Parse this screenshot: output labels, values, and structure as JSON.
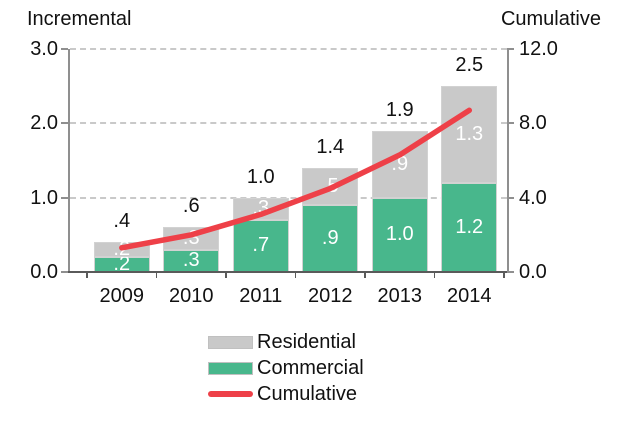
{
  "chart_data": {
    "type": "bar",
    "subtype": "stacked-column-with-cumulative-line",
    "categories": [
      "2009",
      "2010",
      "2011",
      "2012",
      "2013",
      "2014"
    ],
    "series": [
      {
        "name": "Commercial",
        "type": "bar",
        "axis": "left",
        "color": "#48b78c",
        "values": [
          0.2,
          0.3,
          0.7,
          0.9,
          1.0,
          1.2
        ],
        "data_labels": [
          ".2",
          ".3",
          ".7",
          ".9",
          "1.0",
          "1.2"
        ],
        "label_color": "#ffffff"
      },
      {
        "name": "Residential",
        "type": "bar",
        "axis": "left",
        "color": "#c9c9c9",
        "values": [
          0.2,
          0.3,
          0.3,
          0.5,
          0.9,
          1.3
        ],
        "data_labels": [
          ".2",
          ".3",
          ".3",
          ".5",
          ".9",
          "1.3"
        ],
        "label_color": "#ffffff"
      },
      {
        "name": "Cumulative",
        "type": "line",
        "axis": "right",
        "color": "#ee4048",
        "values": [
          1.3,
          2.0,
          3.1,
          4.5,
          6.3,
          8.7
        ]
      }
    ],
    "stack_total_values": [
      0.4,
      0.6,
      1.0,
      1.4,
      1.9,
      2.5
    ],
    "stack_total_labels": [
      ".4",
      ".6",
      "1.0",
      "1.4",
      "1.9",
      "2.5"
    ],
    "left_axis": {
      "title": "Incremental",
      "tick_labels": [
        "3.0",
        "2.0",
        "1.0",
        "0.0"
      ],
      "tick_values": [
        3,
        2,
        1,
        0
      ],
      "range": [
        0,
        3
      ]
    },
    "right_axis": {
      "title": "Cumulative",
      "tick_labels": [
        "12.0",
        "8.0",
        "4.0",
        "0.0"
      ],
      "tick_values": [
        12,
        8,
        4,
        0
      ],
      "range": [
        0,
        12
      ]
    },
    "gridlines": {
      "style": "dashed",
      "color": "#c9c9c9",
      "at_left_axis_values": [
        1,
        2,
        3
      ]
    },
    "legend": {
      "position": "bottom",
      "entries": [
        {
          "label": "Residential",
          "swatch": "gray-rect",
          "color": "#c9c9c9"
        },
        {
          "label": "Commercial",
          "swatch": "green-rect",
          "color": "#48b78c"
        },
        {
          "label": "Cumulative",
          "swatch": "red-line",
          "color": "#ee4048"
        }
      ]
    }
  }
}
